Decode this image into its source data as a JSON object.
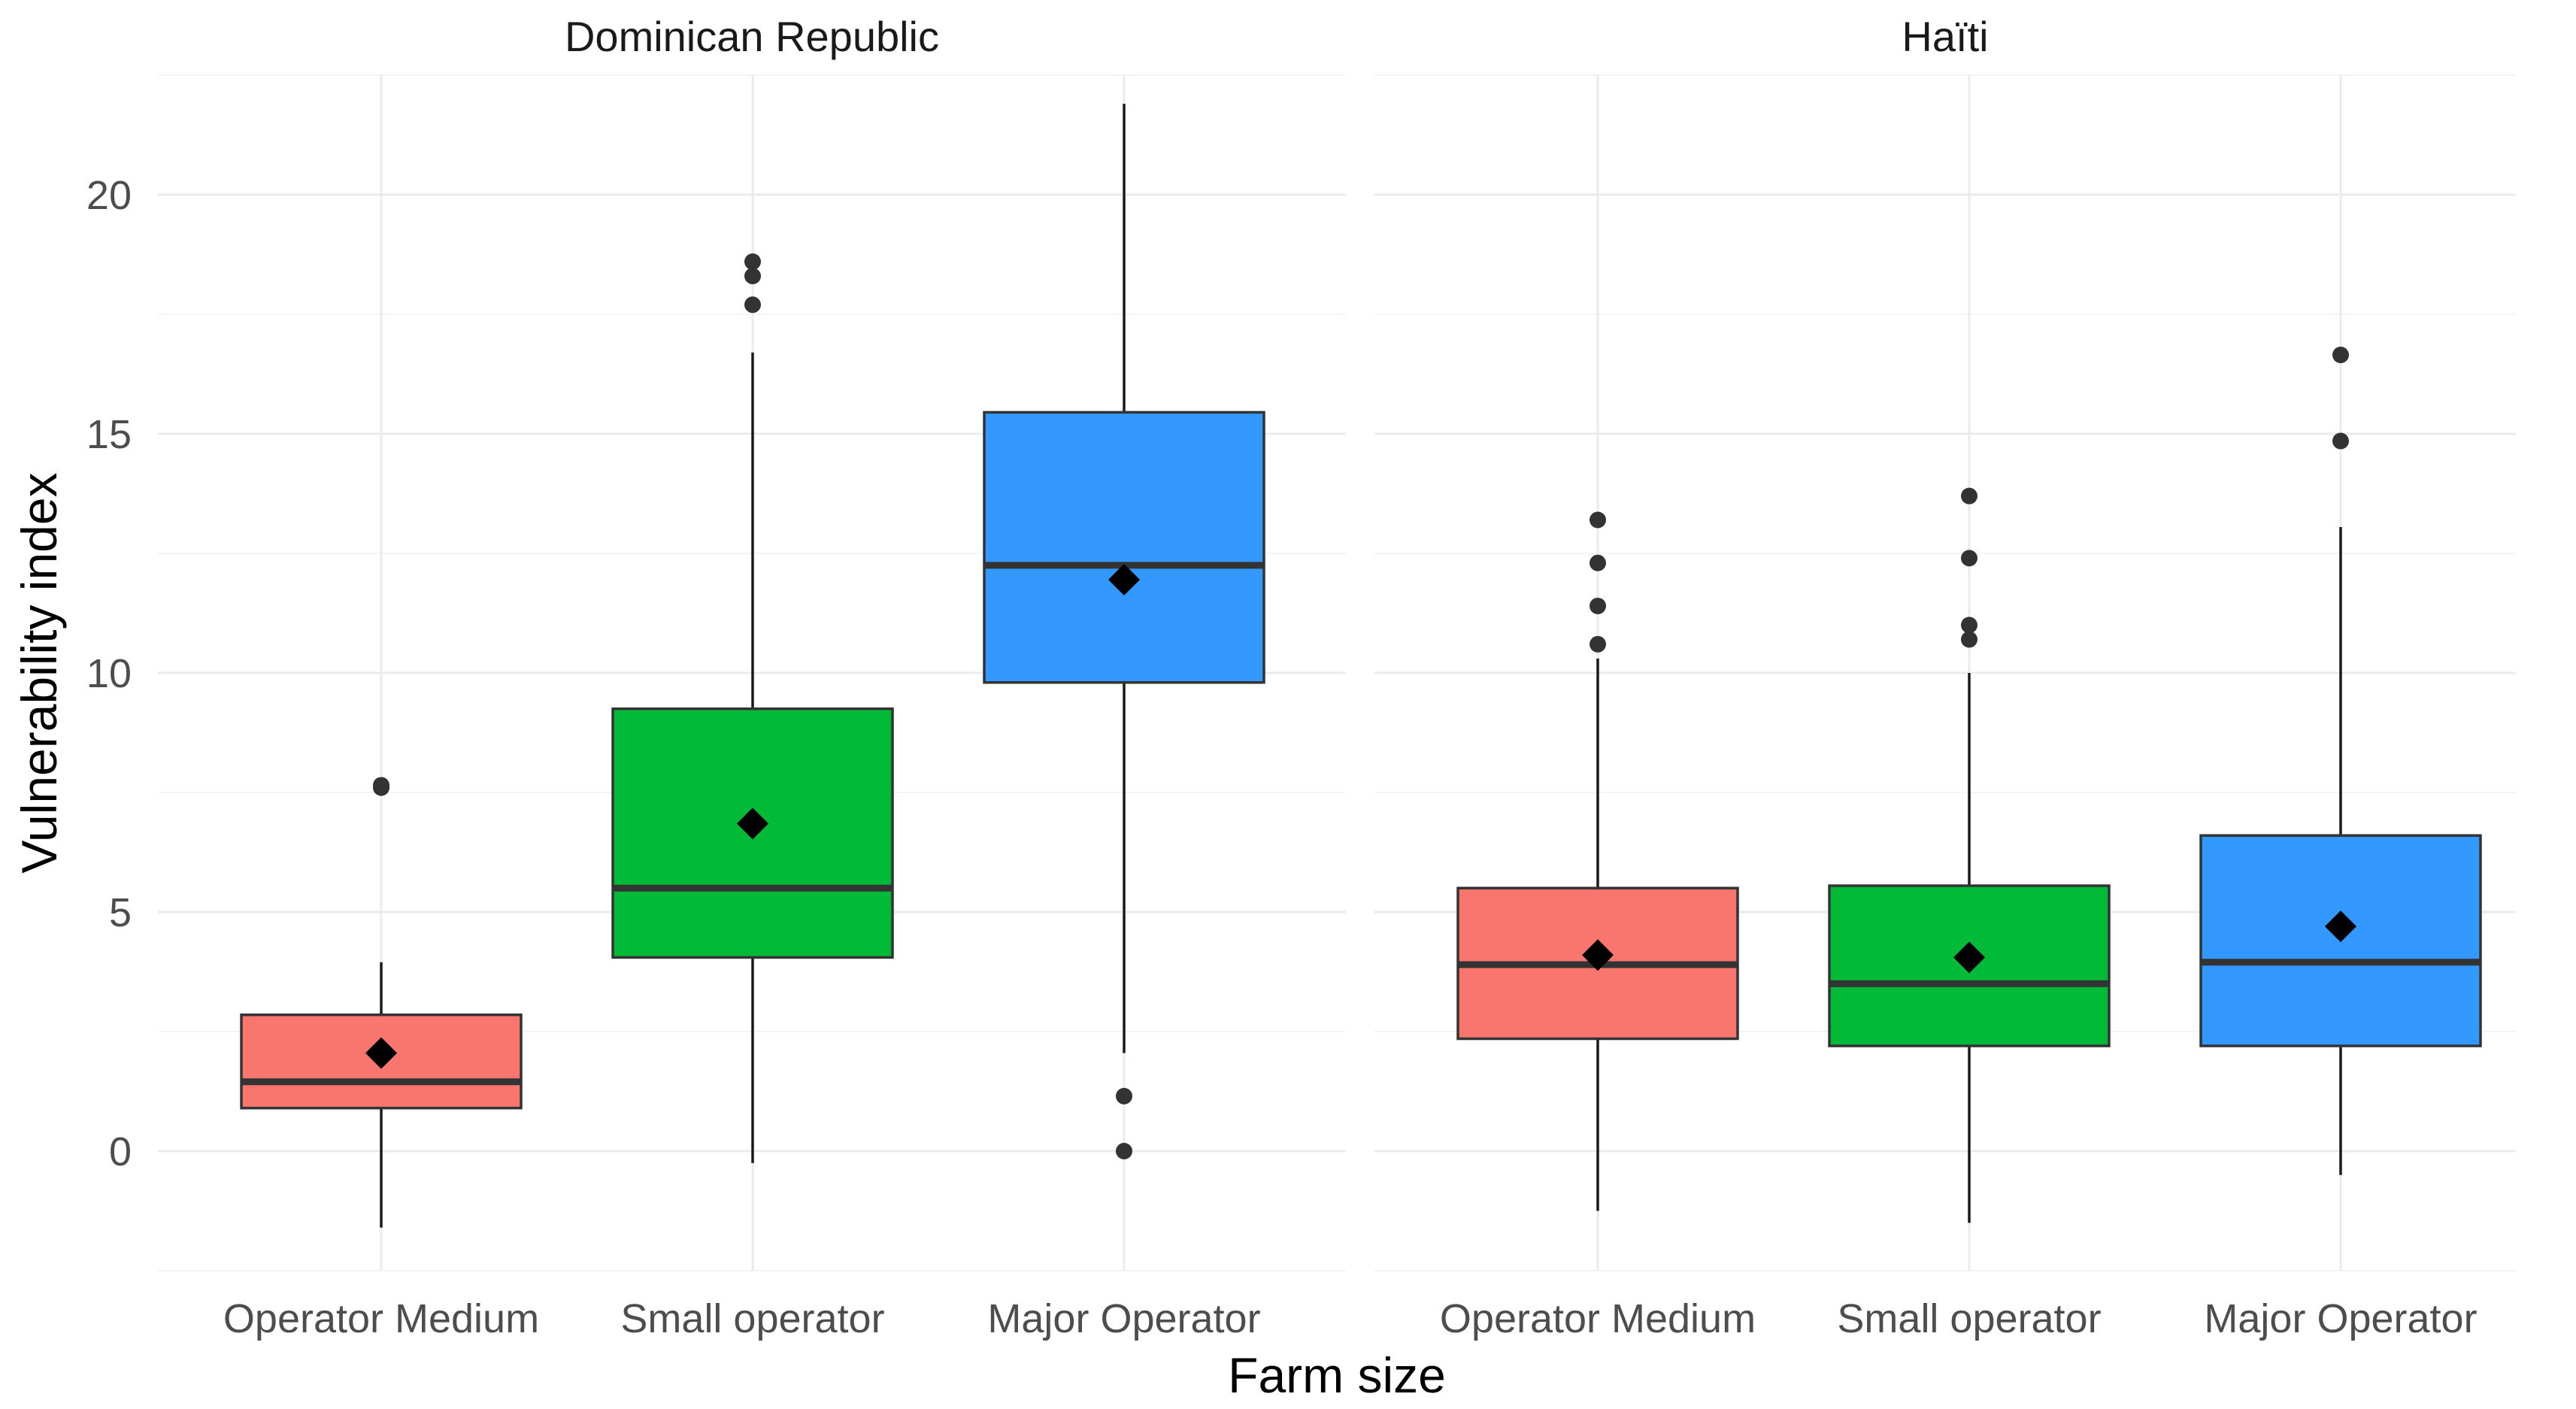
{
  "chart_data": {
    "type": "boxplot",
    "xlabel": "Farm size",
    "ylabel": "Vulnerability index",
    "ylim": [
      -2.5,
      22.5
    ],
    "yticks": [
      0,
      5,
      10,
      15,
      20
    ],
    "categories": [
      "Operator Medium",
      "Small operator",
      "Major Operator"
    ],
    "colors": {
      "Operator Medium": "#F8766D",
      "Small operator": "#00BA38",
      "Major Operator": "#3399FF"
    },
    "mean_marker": "diamond",
    "panels": [
      {
        "title": "Dominican Republic",
        "groups": [
          {
            "category": "Operator Medium",
            "whisker_low": -1.6,
            "q1": 0.9,
            "median": 1.45,
            "q3": 2.85,
            "whisker_high": 3.95,
            "mean": 2.05,
            "outliers": [
              7.6,
              7.65
            ]
          },
          {
            "category": "Small operator",
            "whisker_low": -0.25,
            "q1": 4.05,
            "median": 5.5,
            "q3": 9.25,
            "whisker_high": 16.7,
            "mean": 6.85,
            "outliers": [
              17.7,
              18.3,
              18.6
            ]
          },
          {
            "category": "Major Operator",
            "whisker_low": 2.05,
            "q1": 9.8,
            "median": 12.25,
            "q3": 15.45,
            "whisker_high": 21.9,
            "mean": 11.95,
            "outliers": [
              0.0,
              1.15
            ]
          }
        ]
      },
      {
        "title": "Haïti",
        "groups": [
          {
            "category": "Operator Medium",
            "whisker_low": -1.25,
            "q1": 2.35,
            "median": 3.9,
            "q3": 5.5,
            "whisker_high": 10.3,
            "mean": 4.1,
            "outliers": [
              10.6,
              11.4,
              12.3,
              13.2
            ]
          },
          {
            "category": "Small operator",
            "whisker_low": -1.5,
            "q1": 2.2,
            "median": 3.5,
            "q3": 5.55,
            "whisker_high": 10.0,
            "mean": 4.05,
            "outliers": [
              10.7,
              11.0,
              12.4,
              13.7
            ]
          },
          {
            "category": "Major Operator",
            "whisker_low": -0.5,
            "q1": 2.2,
            "median": 3.95,
            "q3": 6.6,
            "whisker_high": 13.05,
            "mean": 4.7,
            "outliers": [
              14.85,
              16.65
            ]
          }
        ]
      }
    ]
  }
}
